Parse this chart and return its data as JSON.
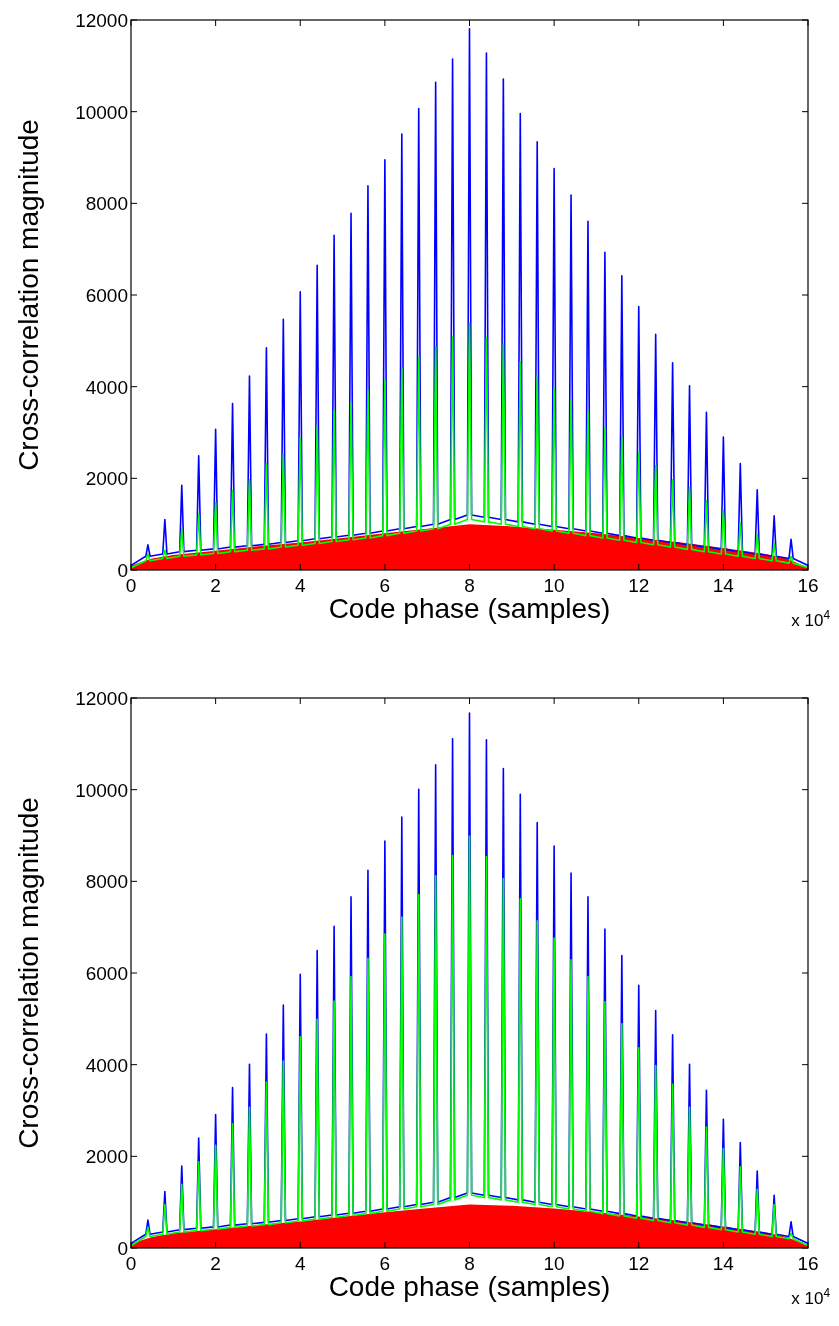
{
  "chart_data": [
    {
      "type": "line",
      "xlabel": "Code phase (samples)",
      "ylabel": "Cross-correlation magnitude",
      "annotations": [
        "x 10$^{4}$"
      ],
      "xlim": [
        0,
        16
      ],
      "xticks": [
        0,
        2,
        4,
        6,
        8,
        10,
        12,
        14,
        16
      ],
      "ylim": [
        0,
        12000
      ],
      "yticks": [
        0,
        2000,
        4000,
        6000,
        8000,
        10000,
        12000
      ],
      "x": [
        0,
        0.35,
        0.4,
        0.45,
        0.75,
        0.8,
        0.85,
        1.15,
        1.2,
        1.25,
        1.55,
        1.6,
        1.65,
        1.95,
        2,
        2.05,
        2.35,
        2.4,
        2.45,
        2.75,
        2.8,
        2.85,
        3.15,
        3.2,
        3.25,
        3.55,
        3.6,
        3.65,
        3.95,
        4,
        4.05,
        4.35,
        4.4,
        4.45,
        4.75,
        4.8,
        4.85,
        5.15,
        5.2,
        5.25,
        5.55,
        5.6,
        5.65,
        5.95,
        6,
        6.05,
        6.35,
        6.4,
        6.45,
        6.75,
        6.8,
        6.85,
        7.15,
        7.2,
        7.25,
        7.55,
        7.6,
        7.65,
        7.95,
        8,
        8.05,
        8.35,
        8.4,
        8.45,
        8.75,
        8.8,
        8.85,
        9.15,
        9.2,
        9.25,
        9.55,
        9.6,
        9.65,
        9.95,
        10,
        10.05,
        10.35,
        10.4,
        10.45,
        10.75,
        10.8,
        10.85,
        11.15,
        11.2,
        11.25,
        11.55,
        11.6,
        11.65,
        11.95,
        12,
        12.05,
        12.35,
        12.4,
        12.45,
        12.75,
        12.8,
        12.85,
        13.15,
        13.2,
        13.25,
        13.55,
        13.6,
        13.65,
        13.95,
        14,
        14.05,
        14.35,
        14.4,
        14.45,
        14.75,
        14.8,
        14.85,
        15.15,
        15.2,
        15.25,
        15.55,
        15.6,
        15.65,
        16
      ],
      "series": [
        {
          "type": "line",
          "color": "#0000ff",
          "values": [
            100,
            300,
            550,
            300,
            350,
            1100,
            350,
            400,
            1850,
            400,
            430,
            2490,
            430,
            460,
            3070,
            460,
            500,
            3630,
            500,
            530,
            4230,
            530,
            560,
            4850,
            560,
            600,
            5470,
            600,
            640,
            6070,
            640,
            680,
            6650,
            680,
            720,
            7300,
            720,
            760,
            7780,
            760,
            800,
            8380,
            800,
            850,
            8950,
            850,
            900,
            9510,
            900,
            950,
            10070,
            950,
            1000,
            10640,
            1000,
            1100,
            11150,
            1100,
            1200,
            11810,
            1200,
            1150,
            11280,
            1150,
            1100,
            10710,
            1100,
            1050,
            9960,
            1050,
            1000,
            9340,
            1000,
            950,
            8760,
            950,
            900,
            8180,
            900,
            850,
            7610,
            850,
            800,
            6930,
            800,
            750,
            6420,
            750,
            700,
            5750,
            700,
            650,
            5140,
            650,
            600,
            4520,
            600,
            550,
            4020,
            550,
            500,
            3440,
            500,
            450,
            2900,
            450,
            400,
            2320,
            400,
            350,
            1750,
            350,
            300,
            1180,
            300,
            250,
            670,
            250,
            100
          ]
        },
        {
          "type": "line",
          "color": "#00ff00",
          "values": [
            50,
            200,
            350,
            200,
            250,
            430,
            250,
            300,
            890,
            300,
            330,
            1220,
            330,
            360,
            1470,
            360,
            400,
            1740,
            400,
            430,
            1970,
            430,
            460,
            2320,
            460,
            500,
            2520,
            500,
            540,
            2880,
            540,
            580,
            3150,
            580,
            620,
            3480,
            620,
            660,
            3640,
            660,
            700,
            3910,
            700,
            750,
            4140,
            750,
            800,
            4410,
            800,
            850,
            4640,
            850,
            900,
            4870,
            900,
            1000,
            5080,
            1000,
            1100,
            5380,
            1100,
            1050,
            5070,
            1050,
            1000,
            4930,
            1000,
            950,
            4540,
            950,
            900,
            4230,
            900,
            850,
            3970,
            850,
            800,
            3710,
            800,
            750,
            3460,
            750,
            700,
            3100,
            700,
            650,
            2910,
            650,
            600,
            2570,
            600,
            550,
            2280,
            550,
            500,
            1970,
            500,
            450,
            1800,
            450,
            400,
            1510,
            400,
            350,
            1300,
            350,
            300,
            1040,
            300,
            250,
            780,
            250,
            200,
            580,
            200,
            150,
            300,
            150,
            50
          ]
        },
        {
          "type": "area",
          "color": "#ff0000",
          "x": [
            0,
            0.5,
            1,
            2,
            3,
            4,
            5,
            6,
            7,
            8,
            9,
            10,
            11,
            12,
            13,
            14,
            15,
            15.5,
            16
          ],
          "values": [
            100,
            250,
            330,
            420,
            520,
            600,
            700,
            800,
            900,
            1000,
            950,
            880,
            800,
            700,
            600,
            480,
            350,
            250,
            50
          ]
        }
      ]
    },
    {
      "type": "line",
      "xlabel": "Code phase (samples)",
      "ylabel": "Cross-correlation magnitude",
      "annotations": [
        "x 10$^{4}$"
      ],
      "xlim": [
        0,
        16
      ],
      "xticks": [
        0,
        2,
        4,
        6,
        8,
        10,
        12,
        14,
        16
      ],
      "ylim": [
        0,
        12000
      ],
      "yticks": [
        0,
        2000,
        4000,
        6000,
        8000,
        10000,
        12000
      ],
      "x": [
        0,
        0.35,
        0.4,
        0.45,
        0.75,
        0.8,
        0.85,
        1.15,
        1.2,
        1.25,
        1.55,
        1.6,
        1.65,
        1.95,
        2,
        2.05,
        2.35,
        2.4,
        2.45,
        2.75,
        2.8,
        2.85,
        3.15,
        3.2,
        3.25,
        3.55,
        3.6,
        3.65,
        3.95,
        4,
        4.05,
        4.35,
        4.4,
        4.45,
        4.75,
        4.8,
        4.85,
        5.15,
        5.2,
        5.25,
        5.55,
        5.6,
        5.65,
        5.95,
        6,
        6.05,
        6.35,
        6.4,
        6.45,
        6.75,
        6.8,
        6.85,
        7.15,
        7.2,
        7.25,
        7.55,
        7.6,
        7.65,
        7.95,
        8,
        8.05,
        8.35,
        8.4,
        8.45,
        8.75,
        8.8,
        8.85,
        9.15,
        9.2,
        9.25,
        9.55,
        9.6,
        9.65,
        9.95,
        10,
        10.05,
        10.35,
        10.4,
        10.45,
        10.75,
        10.8,
        10.85,
        11.15,
        11.2,
        11.25,
        11.55,
        11.6,
        11.65,
        11.95,
        12,
        12.05,
        12.35,
        12.4,
        12.45,
        12.75,
        12.8,
        12.85,
        13.15,
        13.2,
        13.25,
        13.55,
        13.6,
        13.65,
        13.95,
        14,
        14.05,
        14.35,
        14.4,
        14.45,
        14.75,
        14.8,
        14.85,
        15.15,
        15.2,
        15.25,
        15.55,
        15.6,
        15.65,
        16
      ],
      "series": [
        {
          "type": "line",
          "color": "#0000ff",
          "values": [
            100,
            300,
            610,
            300,
            350,
            1230,
            350,
            400,
            1790,
            400,
            430,
            2400,
            430,
            460,
            2910,
            460,
            500,
            3500,
            500,
            530,
            4010,
            530,
            560,
            4670,
            560,
            600,
            5300,
            600,
            640,
            5970,
            640,
            680,
            6490,
            680,
            720,
            7020,
            720,
            760,
            7660,
            760,
            800,
            8240,
            800,
            850,
            8880,
            850,
            900,
            9400,
            900,
            950,
            10010,
            950,
            1000,
            10540,
            1000,
            1100,
            11110,
            1100,
            1200,
            11670,
            1200,
            1150,
            11090,
            1150,
            1100,
            10460,
            1100,
            1050,
            9900,
            1050,
            1000,
            9280,
            1000,
            950,
            8770,
            950,
            900,
            8180,
            900,
            850,
            7660,
            850,
            800,
            6960,
            800,
            750,
            6380,
            750,
            700,
            5730,
            700,
            650,
            5180,
            650,
            600,
            4650,
            600,
            550,
            4010,
            550,
            500,
            3440,
            500,
            450,
            2810,
            450,
            400,
            2300,
            400,
            350,
            1680,
            350,
            300,
            1150,
            300,
            250,
            570,
            250,
            100
          ]
        },
        {
          "type": "line",
          "color": "#00ff00",
          "values": [
            50,
            250,
            450,
            250,
            300,
            950,
            300,
            350,
            1390,
            350,
            380,
            1880,
            380,
            410,
            2240,
            410,
            450,
            2710,
            450,
            480,
            3070,
            480,
            510,
            3620,
            510,
            550,
            4080,
            550,
            590,
            4610,
            590,
            630,
            4990,
            630,
            670,
            5390,
            670,
            710,
            5920,
            710,
            750,
            6320,
            750,
            800,
            6850,
            800,
            850,
            7220,
            850,
            900,
            7710,
            900,
            950,
            8120,
            950,
            1050,
            8560,
            1050,
            1150,
            8990,
            1150,
            1100,
            8540,
            1100,
            1050,
            8060,
            1050,
            1000,
            7620,
            1000,
            950,
            7140,
            950,
            900,
            6760,
            900,
            850,
            6290,
            850,
            800,
            5920,
            800,
            750,
            5370,
            750,
            700,
            4890,
            700,
            650,
            4370,
            650,
            600,
            3980,
            600,
            550,
            3570,
            550,
            500,
            3070,
            500,
            450,
            2640,
            450,
            400,
            2170,
            400,
            350,
            1770,
            350,
            300,
            1280,
            300,
            250,
            950,
            250,
            200,
            320,
            200,
            50
          ]
        },
        {
          "type": "area",
          "color": "#ff0000",
          "x": [
            0,
            0.5,
            1,
            2,
            3,
            4,
            5,
            6,
            7,
            8,
            9,
            10,
            11,
            12,
            13,
            14,
            15,
            15.5,
            16
          ],
          "values": [
            100,
            240,
            320,
            410,
            500,
            580,
            680,
            780,
            870,
            950,
            920,
            860,
            780,
            690,
            590,
            470,
            340,
            240,
            50
          ]
        }
      ]
    }
  ]
}
